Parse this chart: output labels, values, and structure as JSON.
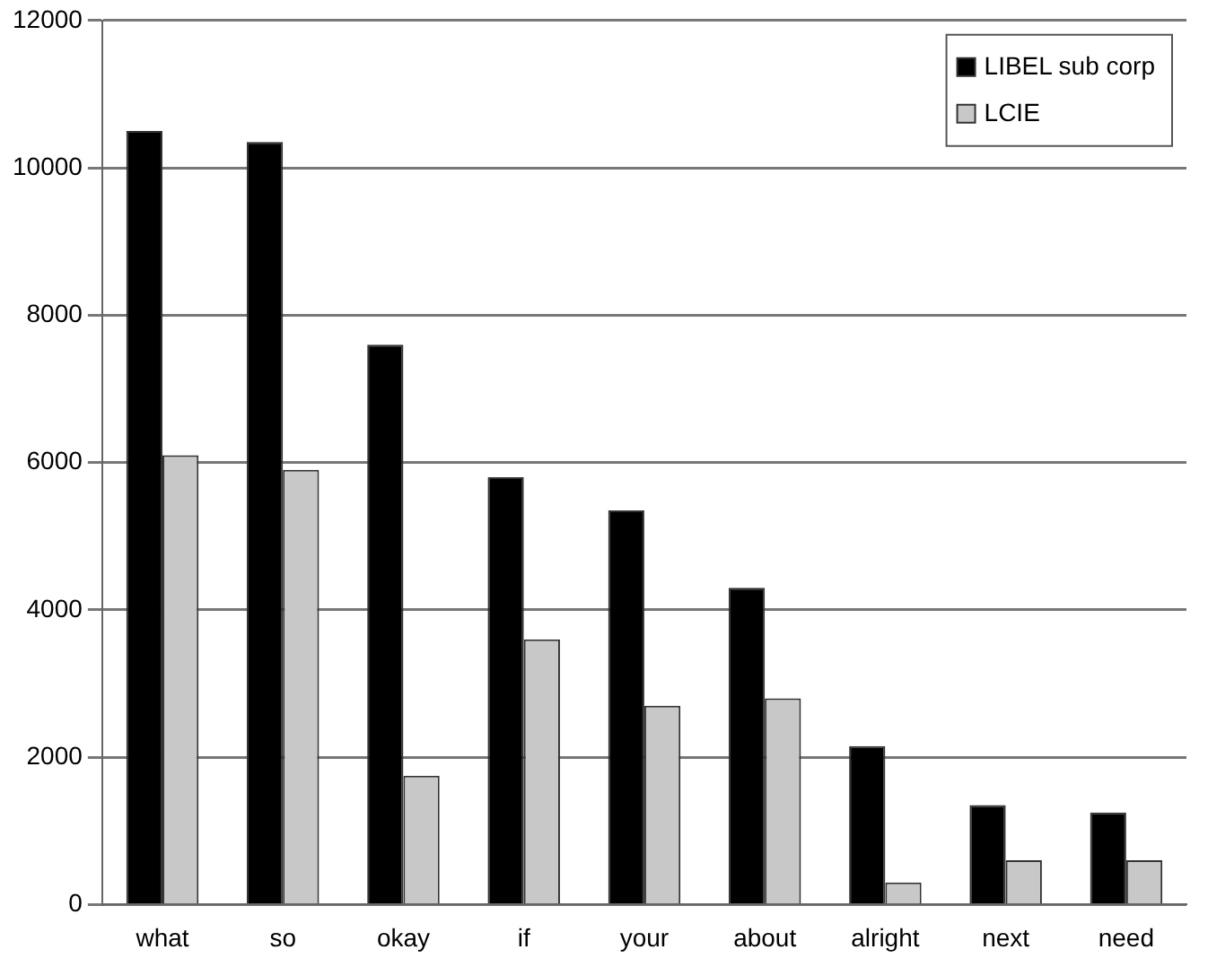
{
  "chart_data": {
    "type": "bar",
    "categories": [
      "what",
      "so",
      "okay",
      "if",
      "your",
      "about",
      "alright",
      "next",
      "need"
    ],
    "series": [
      {
        "name": "LIBEL sub corp",
        "color": "#000000",
        "values": [
          10500,
          10350,
          7600,
          5800,
          5350,
          4300,
          2150,
          1350,
          1250
        ]
      },
      {
        "name": "LCIE",
        "color": "#c8c8c8",
        "values": [
          6100,
          5900,
          1750,
          3600,
          2700,
          2800,
          300,
          600,
          600
        ]
      }
    ],
    "ylim": [
      0,
      12000
    ],
    "yticks": [
      0,
      2000,
      4000,
      6000,
      8000,
      10000,
      12000
    ],
    "grid": "y",
    "legend": "top right"
  }
}
